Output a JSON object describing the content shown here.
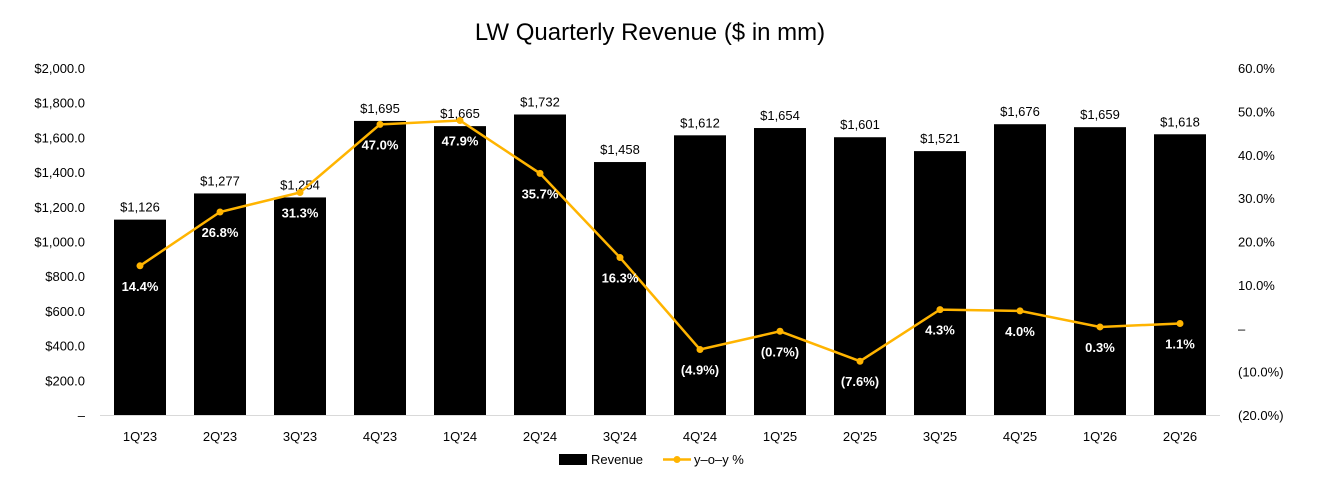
{
  "chart_data": {
    "type": "bar",
    "title": "LW Quarterly Revenue ($ in mm)",
    "categories": [
      "1Q'23",
      "2Q'23",
      "3Q'23",
      "4Q'23",
      "1Q'24",
      "2Q'24",
      "3Q'24",
      "4Q'24",
      "1Q'25",
      "2Q'25",
      "3Q'25",
      "4Q'25",
      "1Q'26",
      "2Q'26"
    ],
    "series": [
      {
        "name": "Revenue",
        "type": "bar",
        "axis": "left",
        "color": "#000000",
        "values": [
          1126,
          1277,
          1254,
          1695,
          1665,
          1732,
          1458,
          1612,
          1654,
          1601,
          1521,
          1676,
          1659,
          1618
        ],
        "labels": [
          "$1,126",
          "$1,277",
          "$1,254",
          "$1,695",
          "$1,665",
          "$1,732",
          "$1,458",
          "$1,612",
          "$1,654",
          "$1,601",
          "$1,521",
          "$1,676",
          "$1,659",
          "$1,618"
        ]
      },
      {
        "name": "y–o–y %",
        "type": "line",
        "axis": "right",
        "color": "#FFB400",
        "values": [
          14.4,
          26.8,
          31.3,
          47.0,
          47.9,
          35.7,
          16.3,
          -4.9,
          -0.7,
          -7.6,
          4.3,
          4.0,
          0.3,
          1.1
        ],
        "labels": [
          "14.4%",
          "26.8%",
          "31.3%",
          "47.0%",
          "47.9%",
          "35.7%",
          "16.3%",
          "(4.9%)",
          "(0.7%)",
          "(7.6%)",
          "4.3%",
          "4.0%",
          "0.3%",
          "1.1%"
        ]
      }
    ],
    "ylim": [
      0,
      2000
    ],
    "y2lim": [
      -20,
      60
    ],
    "yticks": [
      "–",
      "$200.0",
      "$400.0",
      "$600.0",
      "$800.0",
      "$1,000.0",
      "$1,200.0",
      "$1,400.0",
      "$1,600.0",
      "$1,800.0",
      "$2,000.0"
    ],
    "y2ticks": [
      "(20.0%)",
      "(10.0%)",
      "–",
      "10.0%",
      "20.0%",
      "30.0%",
      "40.0%",
      "50.0%",
      "60.0%"
    ],
    "grid": false,
    "legend": "bottom-center"
  }
}
